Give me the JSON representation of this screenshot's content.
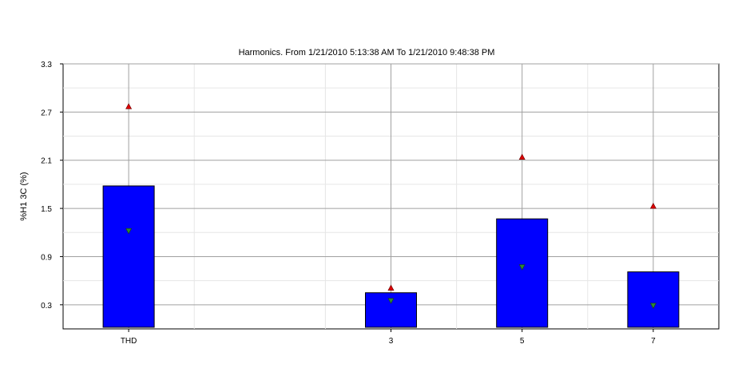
{
  "chart_data": {
    "type": "box",
    "title": "Harmonics. From 1/21/2010 5:13:38 AM To 1/21/2010 9:48:38 PM",
    "xlabel": "",
    "ylabel": "%H1 3C (%)",
    "ylim": [
      0,
      3.3
    ],
    "yticks": [
      "3.3",
      "2.7",
      "2.1",
      "1.5",
      "0.9",
      "0.3"
    ],
    "ytick_values": [
      3.3,
      2.7,
      2.1,
      1.5,
      0.9,
      0.3
    ],
    "categories": [
      "THD",
      "3",
      "5",
      "7"
    ],
    "category_slots": [
      0,
      2,
      3,
      4
    ],
    "slot_count": 5,
    "boxes": [
      {
        "label": "THD",
        "low": 0.02,
        "high": 1.78,
        "mean": 1.22,
        "max": 2.77
      },
      {
        "label": "3",
        "low": 0.02,
        "high": 0.45,
        "mean": 0.35,
        "max": 0.51
      },
      {
        "label": "5",
        "low": 0.02,
        "high": 1.37,
        "mean": 0.77,
        "max": 2.14
      },
      {
        "label": "7",
        "low": 0.02,
        "high": 0.71,
        "mean": 0.29,
        "max": 1.53
      }
    ],
    "grid": true,
    "colors": {
      "box_fill": "#0000ff",
      "box_stroke": "#000000",
      "mean_marker": "#2e8b2e",
      "max_marker": "#dd0000",
      "grid_major": "#a0a0a0",
      "grid_minor": "#e6e6e6"
    }
  }
}
